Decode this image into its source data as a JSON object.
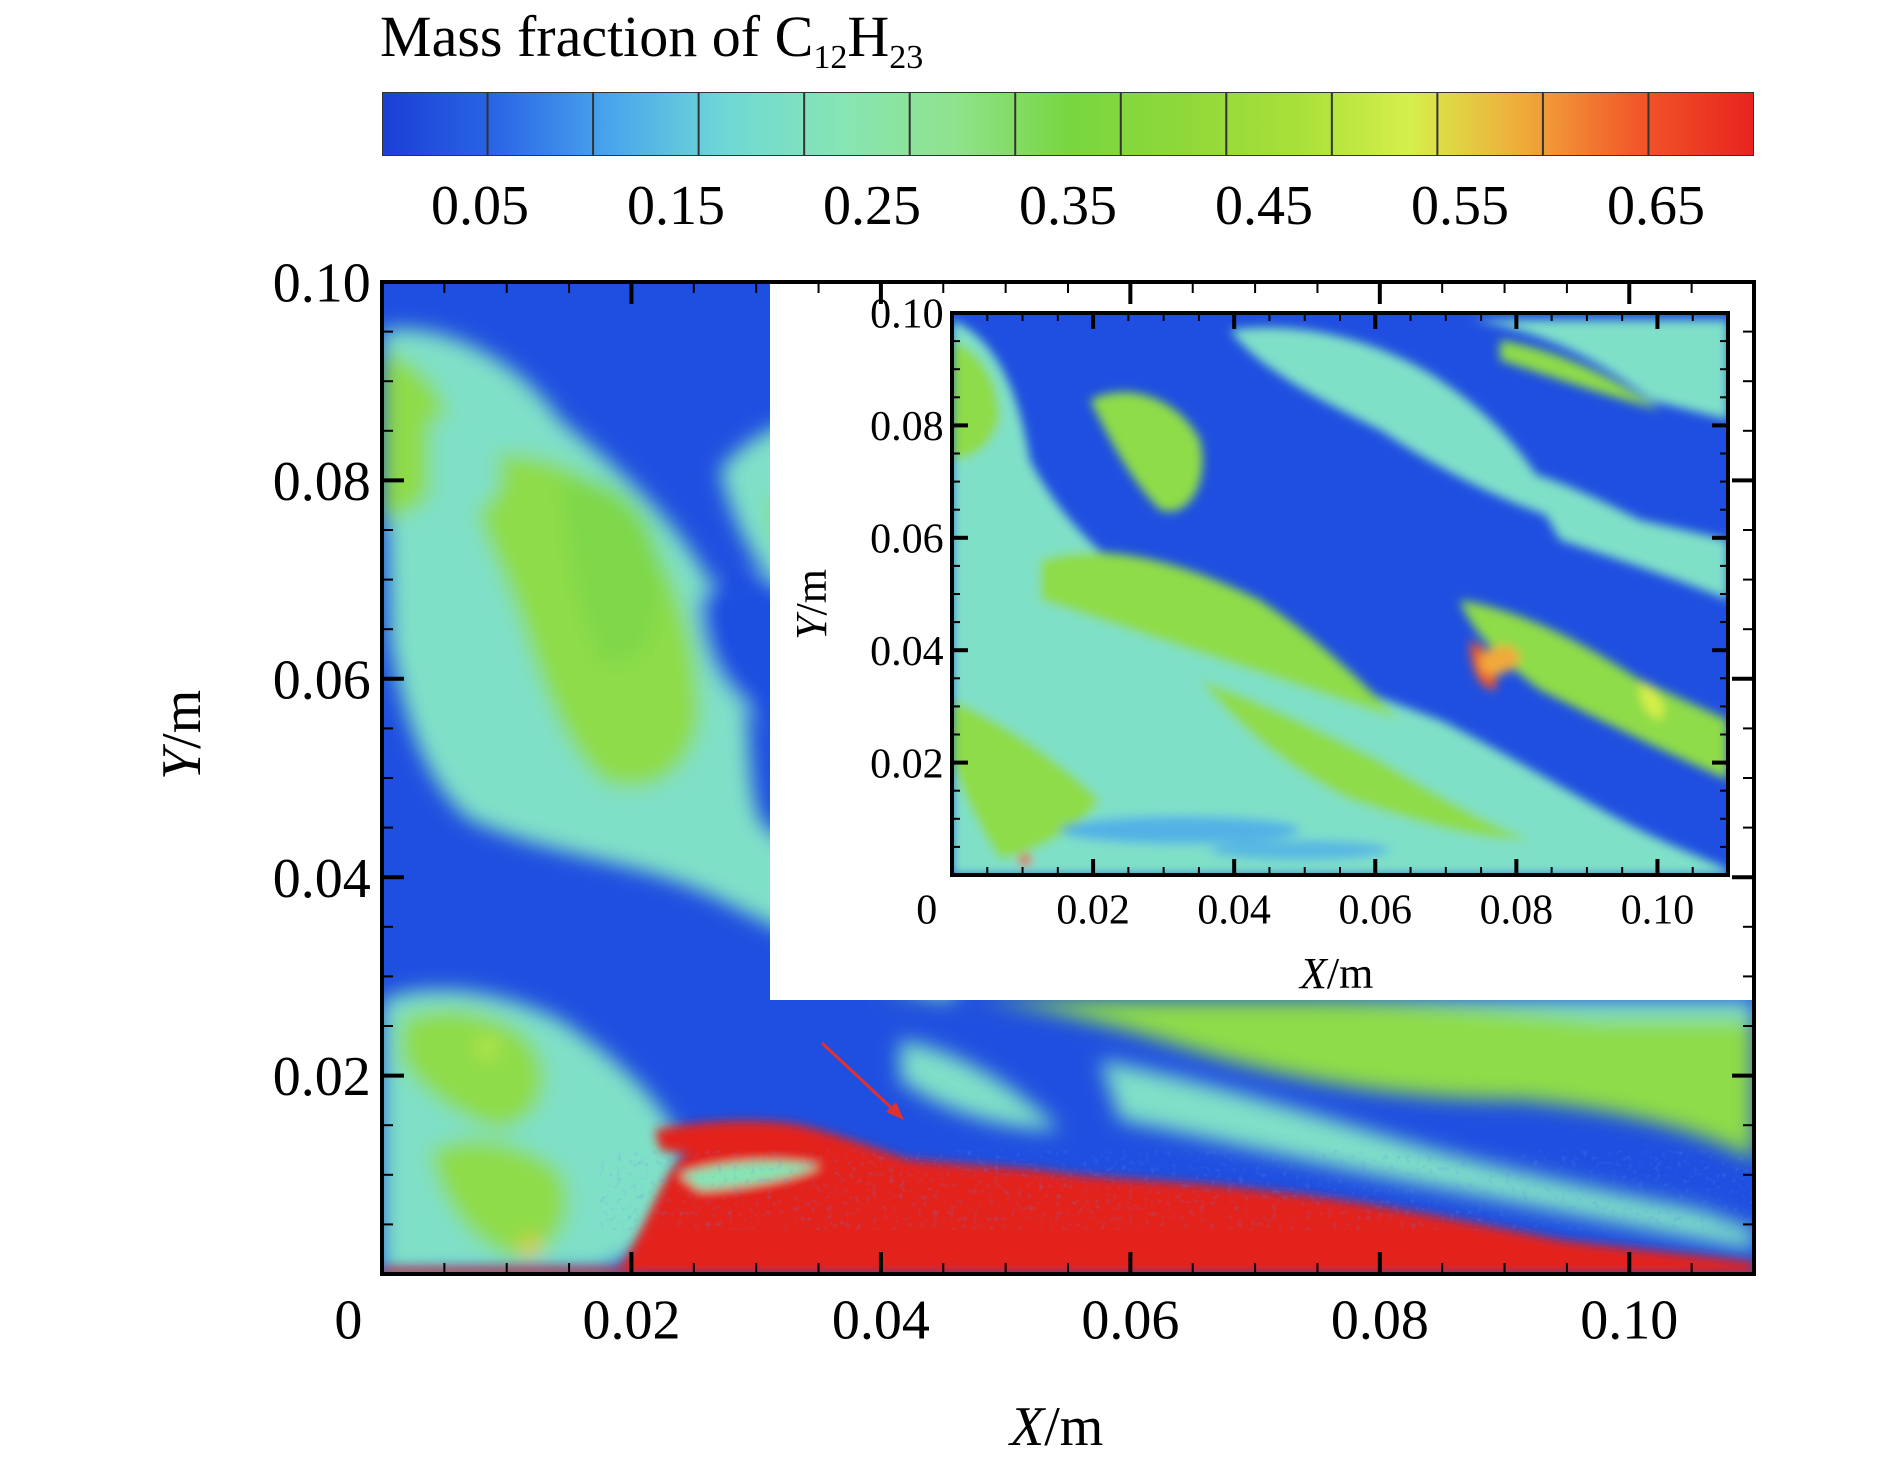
{
  "chart_data": {
    "type": "heatmap",
    "title": "Mass fraction of C12H23",
    "title_parts": {
      "prefix": "Mass fraction of C",
      "sub1": "12",
      "mid": "H",
      "sub2": "23"
    },
    "colorbar": {
      "ticks": [
        "0.05",
        "0.15",
        "0.25",
        "0.35",
        "0.45",
        "0.55",
        "0.65"
      ],
      "range": [
        0.0,
        0.7
      ],
      "levels": 13,
      "colors": [
        "#1a3fd6",
        "#2a66e6",
        "#49a6ec",
        "#6fd8d6",
        "#86e5b4",
        "#8fe38e",
        "#78d640",
        "#8fd83a",
        "#a8e03a",
        "#d6ef4a",
        "#f0a93a",
        "#f2562a",
        "#e8231e"
      ]
    },
    "main_plot": {
      "xlabel": "X/m",
      "ylabel": "Y/m",
      "xlim": [
        0,
        0.11
      ],
      "ylim": [
        0,
        0.1
      ],
      "xticks": [
        "0",
        "0.02",
        "0.04",
        "0.06",
        "0.08",
        "0.10"
      ],
      "xtick_values": [
        0,
        0.02,
        0.04,
        0.06,
        0.08,
        0.1
      ],
      "yticks": [
        "0.02",
        "0.04",
        "0.06",
        "0.08",
        "0.10"
      ],
      "ytick_values": [
        0.02,
        0.04,
        0.06,
        0.08,
        0.1
      ]
    },
    "inset_plot": {
      "xlabel": "X/m",
      "ylabel": "Y/m",
      "xlim": [
        0,
        0.11
      ],
      "ylim": [
        0,
        0.1
      ],
      "xticks": [
        "0",
        "0.02",
        "0.04",
        "0.06",
        "0.08",
        "0.10"
      ],
      "xtick_values": [
        0,
        0.02,
        0.04,
        0.06,
        0.08,
        0.1
      ],
      "yticks": [
        "0.02",
        "0.04",
        "0.06",
        "0.08",
        "0.10"
      ],
      "ytick_values": [
        0.02,
        0.04,
        0.06,
        0.08,
        0.1
      ]
    },
    "colors": {
      "background_blue": "#1f4fe0",
      "mid_cyan": "#7fe0c8",
      "green": "#8edc48",
      "red": "#e3231c",
      "arrow": "#e03030"
    }
  }
}
